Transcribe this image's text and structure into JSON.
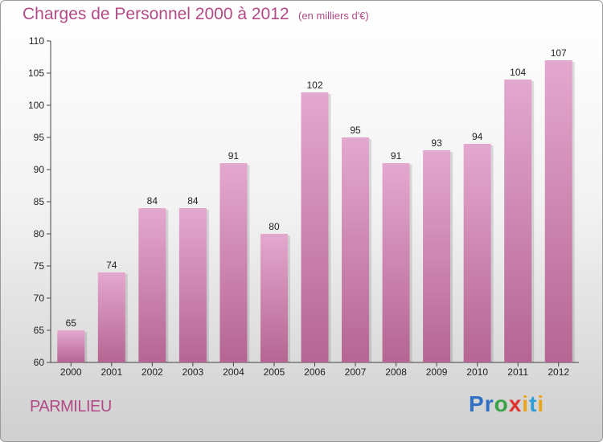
{
  "title": "Charges de Personnel 2000 à 2012",
  "subtitle": "(en milliers d'€)",
  "commune": "PARMILIEU",
  "logo": {
    "letters": [
      "P",
      "r",
      "o",
      "x",
      "i",
      "t",
      "i"
    ],
    "colors": [
      "#2f6fc4",
      "#2f6fc4",
      "#3aa34a",
      "#e0322f",
      "#e8a51a",
      "#2f9fd8",
      "#e8a51a"
    ]
  },
  "colors": {
    "bar_top": "#e4a8cf",
    "bar_bottom": "#b56592",
    "text": "#b24a86"
  },
  "chart_data": {
    "type": "bar",
    "categories": [
      "2000",
      "2001",
      "2002",
      "2003",
      "2004",
      "2005",
      "2006",
      "2007",
      "2008",
      "2009",
      "2010",
      "2011",
      "2012"
    ],
    "values": [
      65,
      74,
      84,
      84,
      91,
      80,
      102,
      95,
      91,
      93,
      94,
      104,
      107
    ],
    "ylim": [
      60,
      110
    ],
    "yticks": [
      60,
      65,
      70,
      75,
      80,
      85,
      90,
      95,
      100,
      105,
      110
    ],
    "data_labels": true,
    "grid": false
  }
}
